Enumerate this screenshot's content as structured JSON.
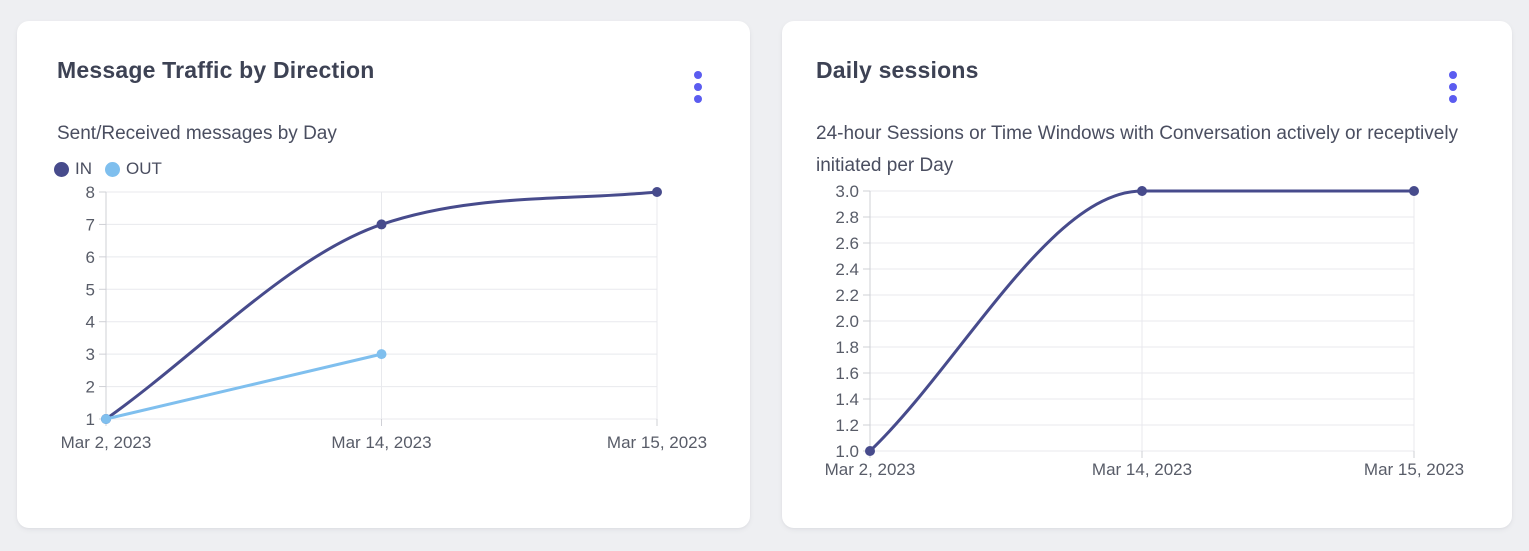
{
  "ui": {
    "accent_color": "#5b5cf0",
    "page_bg": "#eeeff2",
    "card_bg": "#ffffff"
  },
  "chart_data": [
    {
      "type": "line",
      "title": "Message Traffic by Direction",
      "subtitle": "Sent/Received messages by Day",
      "categories": [
        "Mar 2, 2023",
        "Mar 14, 2023",
        "Mar 15, 2023"
      ],
      "series": [
        {
          "name": "IN",
          "color": "#474b8c",
          "values": [
            1,
            7,
            8
          ]
        },
        {
          "name": "OUT",
          "color": "#7fbfee",
          "values": [
            1,
            3,
            null
          ]
        }
      ],
      "xlabel": "",
      "ylabel": "",
      "ylim": [
        1,
        8
      ],
      "ytick_labels": [
        "1",
        "2",
        "3",
        "4",
        "5",
        "6",
        "7",
        "8"
      ],
      "grid": true,
      "legend_position": "top-left",
      "interpolation": "monotone"
    },
    {
      "type": "line",
      "title": "Daily sessions",
      "subtitle": "24-hour Sessions or Time Windows with Conversation actively or receptively initiated per Day",
      "categories": [
        "Mar 2, 2023",
        "Mar 14, 2023",
        "Mar 15, 2023"
      ],
      "series": [
        {
          "name": "Daily sessions",
          "color": "#474b8c",
          "values": [
            1,
            3,
            3
          ]
        }
      ],
      "xlabel": "",
      "ylabel": "",
      "ylim": [
        1,
        3
      ],
      "ytick_labels": [
        "1.0",
        "1.2",
        "1.4",
        "1.6",
        "1.8",
        "2.0",
        "2.2",
        "2.4",
        "2.6",
        "2.8",
        "3.0"
      ],
      "grid": true,
      "legend_position": "none",
      "interpolation": "monotone"
    }
  ]
}
